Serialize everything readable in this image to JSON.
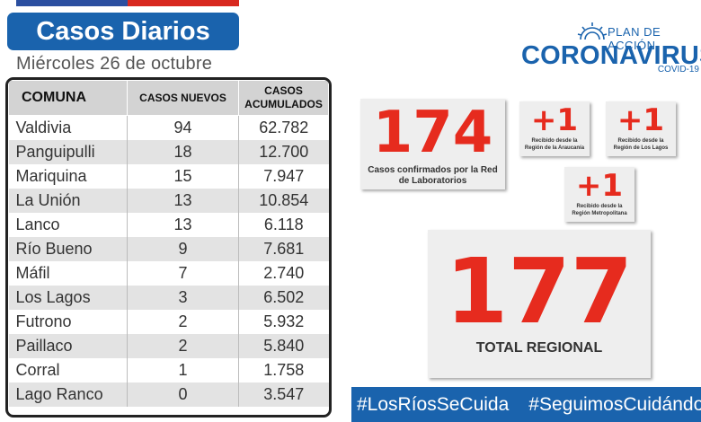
{
  "header": {
    "title": "Casos Diarios",
    "date": "Miércoles 26 de octubre"
  },
  "table": {
    "headers": [
      "COMUNA",
      "CASOS NUEVOS",
      "CASOS ACUMULADOS"
    ],
    "rows": [
      {
        "comuna": "Valdivia",
        "nuevos": "94",
        "acumulados": "62.782"
      },
      {
        "comuna": "Panguipulli",
        "nuevos": "18",
        "acumulados": "12.700"
      },
      {
        "comuna": "Mariquina",
        "nuevos": "15",
        "acumulados": "7.947"
      },
      {
        "comuna": "La Unión",
        "nuevos": "13",
        "acumulados": "10.854"
      },
      {
        "comuna": "Lanco",
        "nuevos": "13",
        "acumulados": "6.118"
      },
      {
        "comuna": "Río Bueno",
        "nuevos": "9",
        "acumulados": "7.681"
      },
      {
        "comuna": "Máfil",
        "nuevos": "7",
        "acumulados": "2.740"
      },
      {
        "comuna": "Los Lagos",
        "nuevos": "3",
        "acumulados": "6.502"
      },
      {
        "comuna": "Futrono",
        "nuevos": "2",
        "acumulados": "5.932"
      },
      {
        "comuna": "Paillaco",
        "nuevos": "2",
        "acumulados": "5.840"
      },
      {
        "comuna": "Corral",
        "nuevos": "1",
        "acumulados": "1.758"
      },
      {
        "comuna": "Lago Ranco",
        "nuevos": "0",
        "acumulados": "3.547"
      }
    ]
  },
  "logo": {
    "plan": "PLAN DE ACCIÓN",
    "name": "CORONAVIRUS",
    "sub": "COVID-19"
  },
  "summary": {
    "lab_count": "174",
    "lab_caption": "Casos confirmados por la Red de Laboratorios",
    "extra": [
      {
        "value": "+1",
        "caption": "Recibido desde la Región de la Araucanía"
      },
      {
        "value": "+1",
        "caption": "Recibido desde la Región de Los Lagos"
      },
      {
        "value": "+1",
        "caption": "Recibido desde la Región Metropolitana"
      }
    ],
    "total": "177",
    "total_caption": "TOTAL REGIONAL"
  },
  "hashtags": [
    "#LosRíosSeCuida",
    "#SeguimosCuidándonos"
  ],
  "colors": {
    "accent_blue": "#1a63ad",
    "number_red": "#e62b1e",
    "flag_blue": "#2b4fa0",
    "flag_red": "#d8281f"
  }
}
